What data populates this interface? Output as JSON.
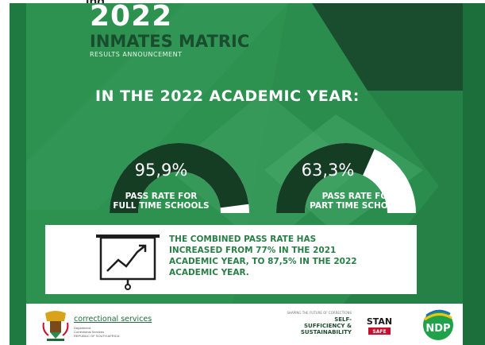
{
  "top_strip": {
    "partial_heading": "ing"
  },
  "poster": {
    "year": "2022",
    "title": "INMATES MATRIC",
    "subtitle": "RESULTS ANNOUNCEMENT",
    "headline": "IN THE 2022 ACADEMIC YEAR:",
    "gauges": [
      {
        "value_text": "95,9%",
        "fraction": 0.959,
        "label_line1": "PASS RATE FOR",
        "label_line2": "FULL TIME SCHOOLS"
      },
      {
        "value_text": "63,3%",
        "fraction": 0.633,
        "label_line1": "PASS RATE FOR",
        "label_line2": "PART TIME SCHOOLS"
      }
    ],
    "info": {
      "icon": "presentation-chart-icon",
      "lines": [
        "THE COMBINED PASS RATE HAS",
        "INCREASED FROM 77% IN THE 2021",
        "ACADEMIC YEAR, TO 87,5% IN THE 2022",
        "ACADEMIC YEAR."
      ]
    }
  },
  "footer": {
    "org_name": "correctional services",
    "org_sub_line1": "Department:",
    "org_sub_line2": "Correctional Services",
    "org_sub_line3": "REPUBLIC OF SOUTH AFRICA",
    "slogan_pre": "SHAPING THE FUTURE OF CORRECTIONS",
    "slogan_line1": "SELF-",
    "slogan_line2": "SUFFICIENCY &",
    "slogan_line3": "SUSTAINABILITY",
    "stand_text": "STAN",
    "stand_sub": "SAFE",
    "ndp_text": "NDP"
  },
  "colors": {
    "poster_green": "#2a8c4d",
    "dark_green": "#1a4d2d",
    "gauge_dark": "#143d24",
    "accent_green": "#2a7e48"
  }
}
